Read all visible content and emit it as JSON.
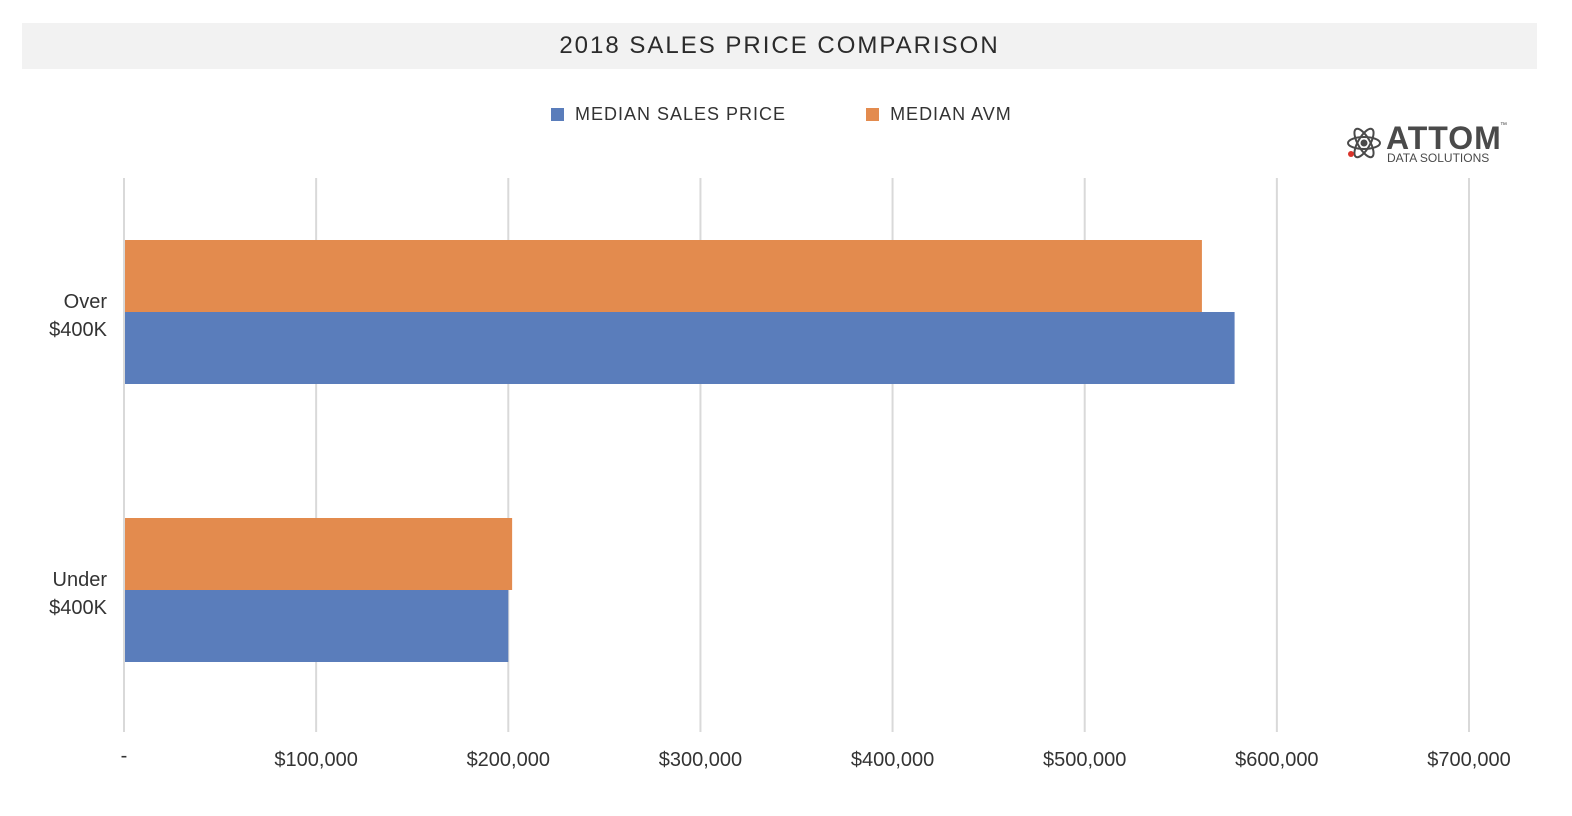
{
  "chart_data": {
    "type": "bar",
    "orientation": "horizontal",
    "title": "2018 SALES PRICE COMPARISON",
    "categories": [
      "Over $400K",
      "Under $400K"
    ],
    "category_lines": [
      [
        "Over",
        "$400K"
      ],
      [
        "Under",
        "$400K"
      ]
    ],
    "series": [
      {
        "name": "MEDIAN SALES PRICE",
        "color": "#5a7dbb",
        "values": [
          578000,
          200000
        ]
      },
      {
        "name": "MEDIAN AVM",
        "color": "#e38b4e",
        "values": [
          561000,
          202000
        ]
      }
    ],
    "xlim": [
      0,
      700000
    ],
    "xticks": [
      0,
      100000,
      200000,
      300000,
      400000,
      500000,
      600000,
      700000
    ],
    "xtick_labels": [
      "-",
      "$100,000",
      "$200,000",
      "$300,000",
      "$400,000",
      "$500,000",
      "$600,000",
      "$700,000"
    ],
    "grid": true,
    "legend_position": "top-center"
  },
  "logo": {
    "brand": "ATTOM",
    "subtitle": "DATA SOLUTIONS",
    "trademark": "™"
  }
}
